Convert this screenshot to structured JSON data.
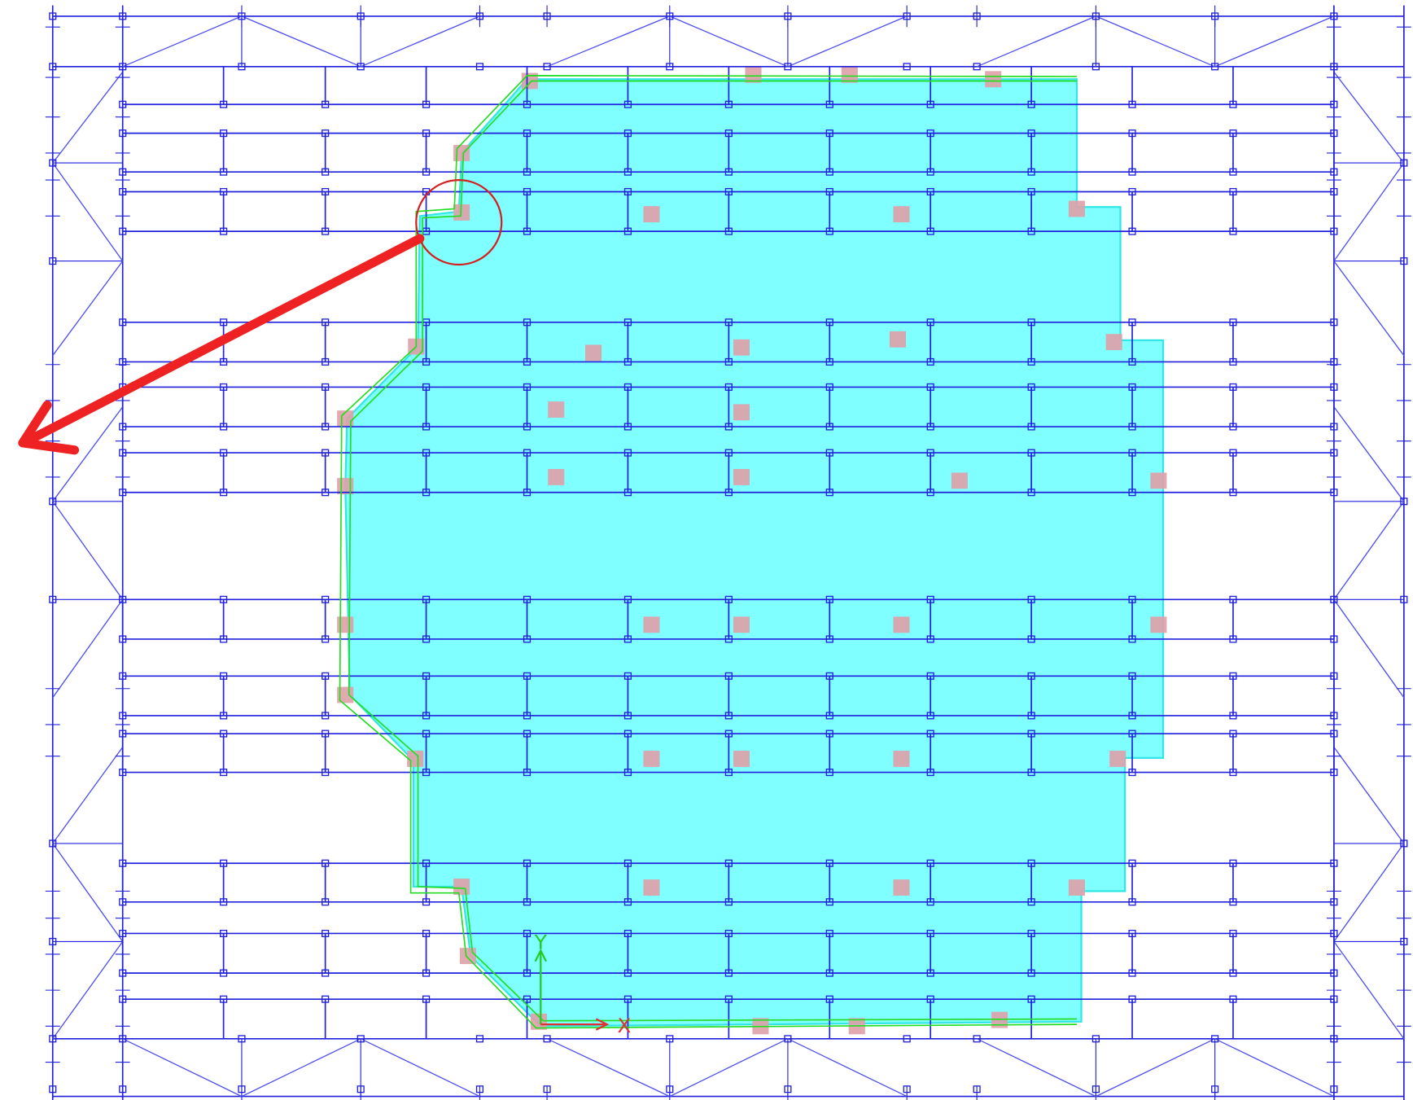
{
  "axis_labels": {
    "x": "X",
    "y": "Y"
  }
}
